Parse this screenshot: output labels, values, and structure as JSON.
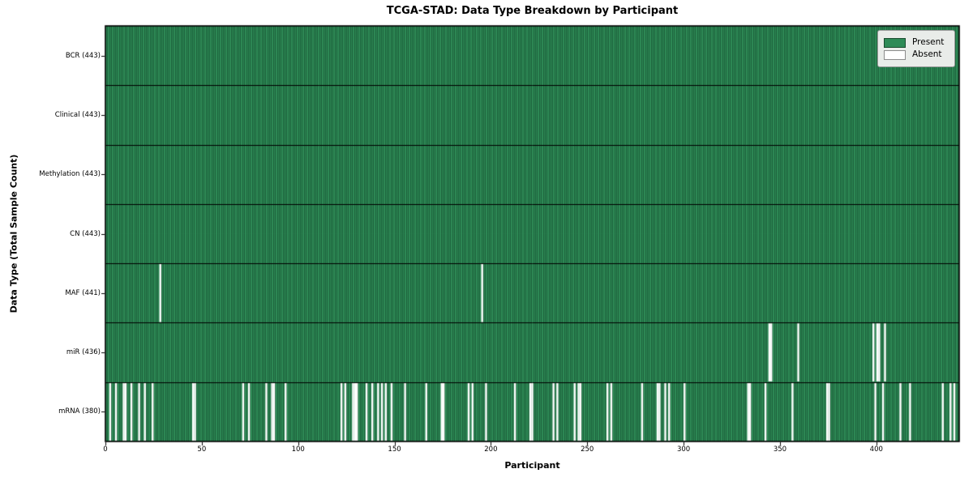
{
  "title": "TCGA-STAD: Data Type Breakdown by Participant",
  "chart_data": {
    "type": "heatmap",
    "title": "TCGA-STAD: Data Type Breakdown by Participant",
    "xlabel": "Participant",
    "ylabel": "Data Type (Total Sample Count)",
    "total_participants": 443,
    "x_ticks": [
      0,
      50,
      100,
      150,
      200,
      250,
      300,
      350,
      400
    ],
    "legend": {
      "position": "upper right",
      "present_label": "Present",
      "absent_label": "Absent"
    },
    "colors": {
      "present": "#2e8b57",
      "absent": "#ffffff",
      "cell_edge": "rgba(5,35,20,0.42)",
      "row_separator": "#000000",
      "plot_border": "#000000",
      "legend_bg": "#e9ece9"
    },
    "rows": [
      {
        "label": "BCR (443)",
        "name": "BCR",
        "count": 443,
        "absent": []
      },
      {
        "label": "Clinical (443)",
        "name": "Clinical",
        "count": 443,
        "absent": []
      },
      {
        "label": "Methylation (443)",
        "name": "Methylation",
        "count": 443,
        "absent": []
      },
      {
        "label": "CN (443)",
        "name": "CN",
        "count": 443,
        "absent": []
      },
      {
        "label": "MAF (441)",
        "name": "MAF",
        "count": 441,
        "absent": [
          28,
          195
        ]
      },
      {
        "label": "miR (436)",
        "name": "miR",
        "count": 436,
        "absent": [
          344,
          345,
          359,
          398,
          400,
          401,
          404
        ]
      },
      {
        "label": "mRNA (380)",
        "name": "mRNA",
        "count": 380,
        "absent": [
          2,
          5,
          9,
          10,
          13,
          17,
          20,
          24,
          45,
          46,
          71,
          74,
          83,
          86,
          87,
          93,
          122,
          124,
          128,
          129,
          130,
          135,
          138,
          141,
          143,
          145,
          148,
          155,
          166,
          174,
          175,
          188,
          190,
          197,
          212,
          220,
          221,
          232,
          234,
          243,
          245,
          246,
          260,
          262,
          278,
          286,
          287,
          290,
          292,
          300,
          333,
          334,
          342,
          356,
          374,
          375,
          399,
          403,
          412,
          417,
          434,
          438,
          440
        ]
      }
    ]
  }
}
